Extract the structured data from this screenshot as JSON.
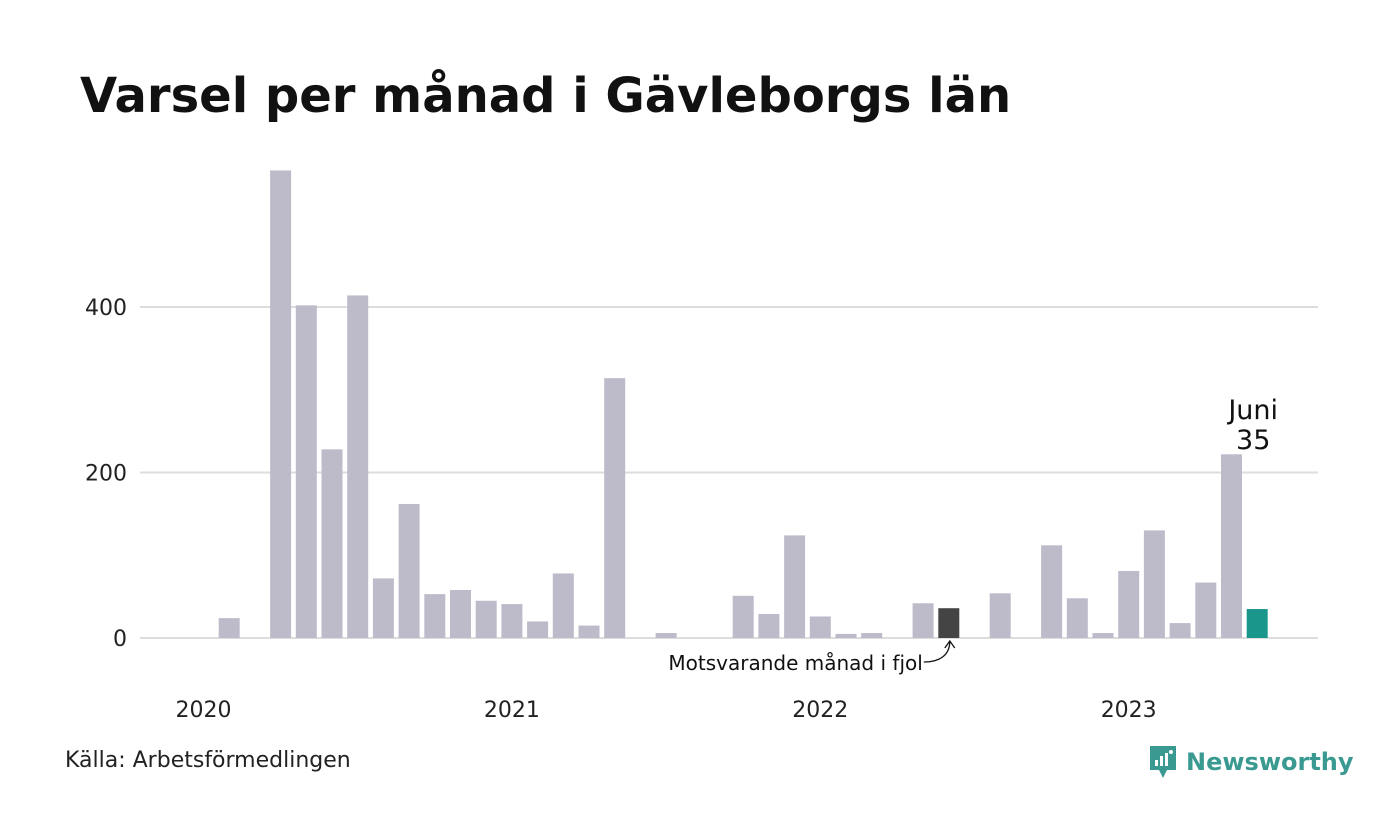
{
  "title": "Varsel per månad i Gävleborgs län",
  "source": "Källa: Arbetsförmedlingen",
  "brand": "Newsworthy",
  "colors": {
    "bar": "#bdbbca",
    "previous_year": "#444444",
    "current": "#1b968a",
    "grid": "#dddddd",
    "brand": "#3a9a92"
  },
  "chart_data": {
    "type": "bar",
    "title": "Varsel per månad i Gävleborgs län",
    "xlabel": "",
    "ylabel": "",
    "ylim": [
      0,
      600
    ],
    "yticks": [
      0,
      200,
      400
    ],
    "grid": true,
    "x_tick_labels": [
      "2020",
      "2021",
      "2022",
      "2023"
    ],
    "categories": [
      "2020-01",
      "2020-02",
      "2020-03",
      "2020-04",
      "2020-05",
      "2020-06",
      "2020-07",
      "2020-08",
      "2020-09",
      "2020-10",
      "2020-11",
      "2020-12",
      "2021-01",
      "2021-02",
      "2021-03",
      "2021-04",
      "2021-05",
      "2021-06",
      "2021-07",
      "2021-08",
      "2021-09",
      "2021-10",
      "2021-11",
      "2021-12",
      "2022-01",
      "2022-02",
      "2022-03",
      "2022-04",
      "2022-05",
      "2022-06",
      "2022-07",
      "2022-08",
      "2022-09",
      "2022-10",
      "2022-11",
      "2022-12",
      "2023-01",
      "2023-02",
      "2023-03",
      "2023-04",
      "2023-05",
      "2023-06"
    ],
    "values": [
      0,
      24,
      0,
      565,
      402,
      228,
      414,
      72,
      162,
      53,
      58,
      45,
      41,
      20,
      78,
      15,
      314,
      0,
      6,
      0,
      0,
      51,
      29,
      124,
      26,
      5,
      6,
      0,
      42,
      36,
      0,
      54,
      0,
      112,
      48,
      6,
      81,
      130,
      18,
      67,
      222,
      35
    ],
    "highlight": {
      "previous_year": [
        "2021-06",
        "2022-06"
      ],
      "current": "2023-06"
    },
    "annotations": {
      "current_month_label": "Juni",
      "current_value_label": "35",
      "previous_year_label": "Motsvarande månad i fjol"
    }
  }
}
